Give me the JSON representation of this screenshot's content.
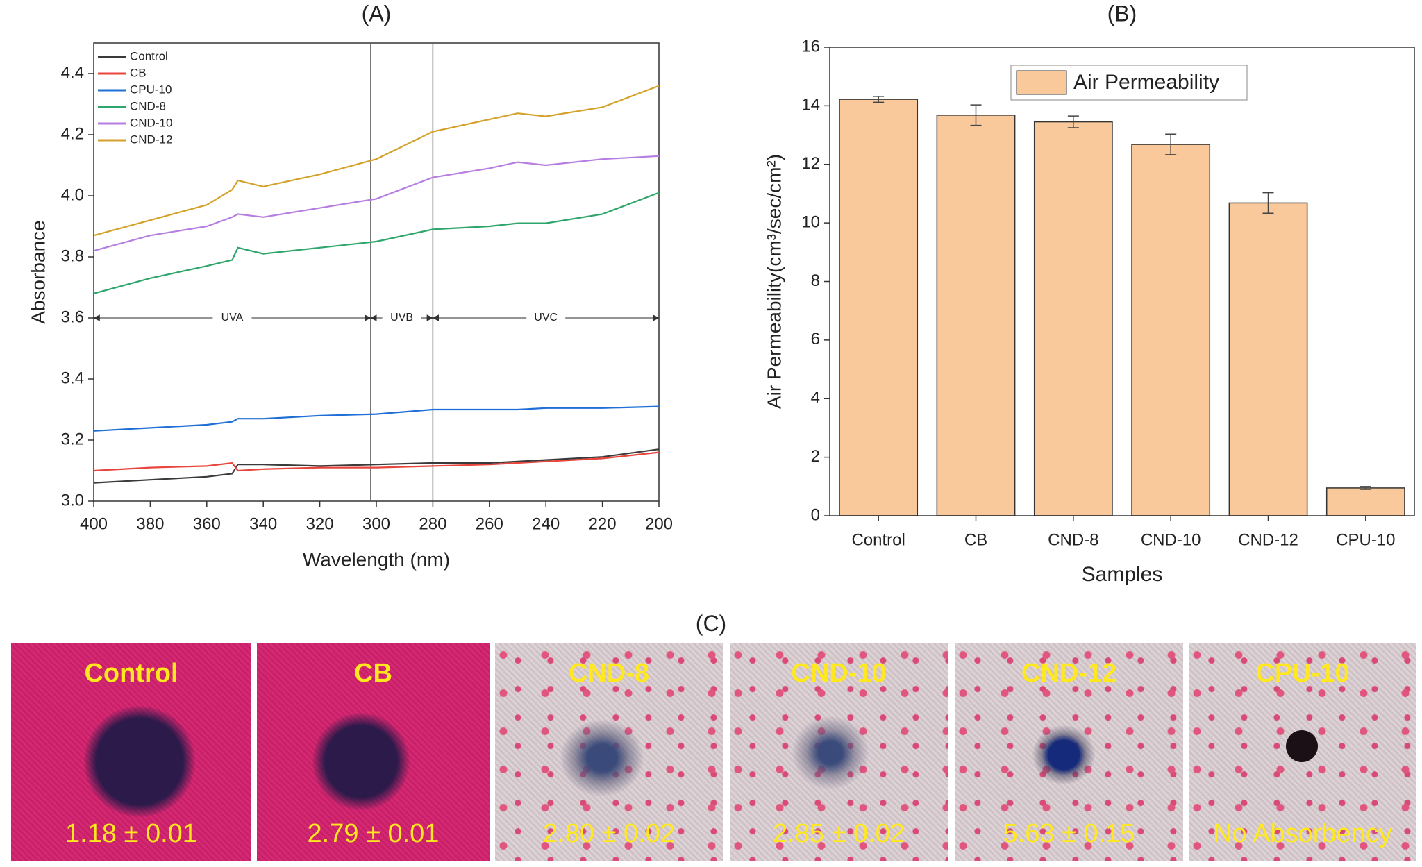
{
  "chart_data": [
    {
      "type": "line",
      "title": "(A)",
      "x_label": "Wavelength (nm)",
      "y_label": "Absorbance",
      "x": [
        400,
        380,
        360,
        351,
        349,
        340,
        320,
        300,
        280,
        260,
        250,
        240,
        220,
        200
      ],
      "series": [
        {
          "name": "Control",
          "color": "#3a3a3a",
          "values": [
            3.06,
            3.07,
            3.08,
            3.09,
            3.12,
            3.12,
            3.115,
            3.12,
            3.125,
            3.125,
            3.13,
            3.135,
            3.145,
            3.17
          ]
        },
        {
          "name": "CB",
          "color": "#e8453c",
          "values": [
            3.1,
            3.11,
            3.115,
            3.125,
            3.1,
            3.105,
            3.11,
            3.11,
            3.115,
            3.12,
            3.125,
            3.13,
            3.14,
            3.16
          ]
        },
        {
          "name": "CPU-10",
          "color": "#1f6fd6",
          "values": [
            3.23,
            3.24,
            3.25,
            3.26,
            3.27,
            3.27,
            3.28,
            3.285,
            3.3,
            3.3,
            3.3,
            3.305,
            3.305,
            3.31
          ]
        },
        {
          "name": "CND-8",
          "color": "#2ea56a",
          "values": [
            3.68,
            3.73,
            3.77,
            3.79,
            3.83,
            3.81,
            3.83,
            3.85,
            3.89,
            3.9,
            3.91,
            3.91,
            3.94,
            4.01
          ]
        },
        {
          "name": "CND-10",
          "color": "#b57ee0",
          "values": [
            3.82,
            3.87,
            3.9,
            3.93,
            3.94,
            3.93,
            3.96,
            3.99,
            4.06,
            4.09,
            4.11,
            4.1,
            4.12,
            4.13
          ]
        },
        {
          "name": "CND-12",
          "color": "#d4a22a",
          "values": [
            3.87,
            3.92,
            3.97,
            4.02,
            4.05,
            4.03,
            4.07,
            4.12,
            4.21,
            4.25,
            4.27,
            4.26,
            4.29,
            4.36
          ]
        }
      ],
      "xlim": [
        400,
        200
      ],
      "xticks": [
        400,
        380,
        360,
        340,
        320,
        300,
        280,
        260,
        240,
        220,
        200
      ],
      "ylim": [
        3.0,
        4.5
      ],
      "yticks": [
        {
          "value": 3,
          "label": "3.0"
        },
        3.2,
        3.4,
        3.6,
        3.8,
        {
          "value": 4,
          "label": "4.0"
        },
        4.2,
        4.4
      ],
      "vlines": [
        302,
        280
      ],
      "regions": [
        {
          "label": "UVA",
          "from": 400,
          "to": 302
        },
        {
          "label": "UVB",
          "from": 302,
          "to": 280
        },
        {
          "label": "UVC",
          "from": 280,
          "to": 200
        }
      ],
      "region_y": 3.6,
      "legend": "upper left"
    },
    {
      "type": "bar",
      "title": "(B)",
      "x_label": "Samples",
      "y_label": "Air Permeability(cm³/sec/cm²)",
      "categories": [
        "Control",
        "CB",
        "CND-8",
        "CND-10",
        "CND-12",
        "CPU-10"
      ],
      "series": [
        {
          "name": "Air Permeability",
          "color": "#f9c89b",
          "values": [
            14.22,
            13.68,
            13.45,
            12.68,
            10.68,
            0.95
          ],
          "errors": [
            0.1,
            0.35,
            0.2,
            0.35,
            0.35,
            0.05
          ]
        }
      ],
      "ylim": [
        0,
        16
      ],
      "yticks": [
        0,
        2,
        4,
        6,
        8,
        10,
        12,
        14,
        16
      ],
      "legend": "upper center"
    }
  ],
  "panel_c": {
    "title": "(C)",
    "samples": [
      {
        "name": "Control",
        "value": "1.18 ± 0.01"
      },
      {
        "name": "CB",
        "value": "2.79 ± 0.01"
      },
      {
        "name": "CND-8",
        "value": "2.80 ± 0.02"
      },
      {
        "name": "CND-10",
        "value": "2.85 ± 0.02"
      },
      {
        "name": "CND-12",
        "value": "5.63 ± 0.15"
      },
      {
        "name": "CPU-10",
        "value": "No Absorbency"
      }
    ]
  }
}
